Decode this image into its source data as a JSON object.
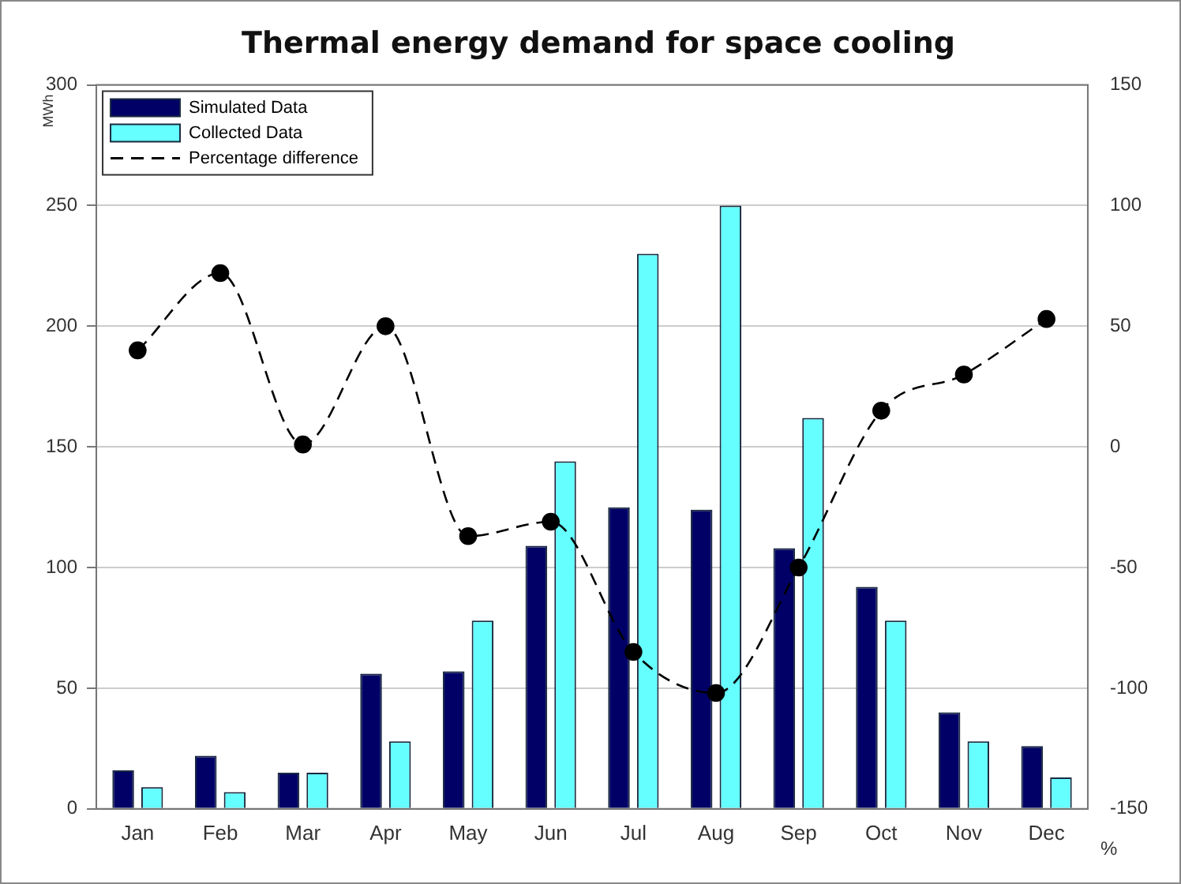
{
  "chart_data": {
    "type": "bar",
    "title": "Thermal energy demand for space cooling",
    "ylabel": "MWh",
    "y2label": "%",
    "categories": [
      "Jan",
      "Feb",
      "Mar",
      "Apr",
      "May",
      "Jun",
      "Jul",
      "Aug",
      "Sep",
      "Oct",
      "Nov",
      "Dec"
    ],
    "series": [
      {
        "name": "Simulated Data",
        "color": "#000066",
        "values": [
          16,
          22,
          15,
          56,
          57,
          109,
          125,
          124,
          108,
          92,
          40,
          26
        ]
      },
      {
        "name": "Collected Data",
        "color": "#66ffff",
        "values": [
          9,
          7,
          15,
          28,
          78,
          144,
          230,
          250,
          162,
          78,
          28,
          13
        ]
      },
      {
        "name": "Percentage difference",
        "type": "line",
        "axis": "y2",
        "color": "#000000",
        "marker": "circle",
        "line_style": "dashed",
        "values": [
          40,
          72,
          1,
          50,
          -37,
          -31,
          -85,
          -102,
          -50,
          15,
          30,
          53
        ]
      }
    ],
    "ylim": [
      0,
      300
    ],
    "yticks": [
      0,
      50,
      100,
      150,
      200,
      250,
      300
    ],
    "y2lim": [
      -150,
      150
    ],
    "y2ticks": [
      -150,
      -100,
      -50,
      0,
      50,
      100,
      150
    ],
    "grid": "y",
    "legend": "top left"
  }
}
